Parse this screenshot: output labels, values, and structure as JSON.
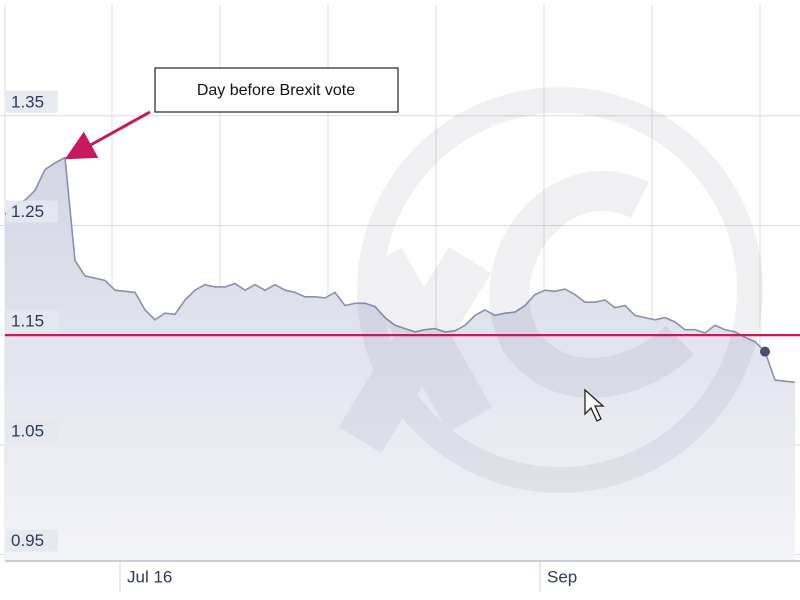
{
  "chart_data": {
    "type": "area-line",
    "annotation": "Day before Brexit vote",
    "categories": [
      null,
      null,
      null,
      null,
      null,
      null,
      null,
      null,
      null,
      null,
      null,
      null,
      "Jul 16",
      null,
      null,
      null,
      null,
      null,
      null,
      null,
      null,
      null,
      null,
      null,
      null,
      null,
      null,
      null,
      null,
      null,
      null,
      null,
      null,
      null,
      null,
      null,
      null,
      null,
      null,
      null,
      null,
      null,
      null,
      null,
      null,
      null,
      null,
      null,
      null,
      null,
      null,
      null,
      null,
      null,
      "Sep",
      null,
      null,
      null,
      null,
      null,
      null,
      null,
      null,
      null,
      null,
      null,
      null,
      null,
      null,
      null,
      null,
      null,
      null,
      null,
      null,
      null,
      null,
      null,
      null,
      null
    ],
    "values": [
      1.26,
      1.269,
      1.273,
      1.282,
      1.301,
      1.307,
      1.312,
      1.218,
      1.204,
      1.202,
      1.2,
      1.191,
      1.19,
      1.189,
      1.173,
      1.164,
      1.17,
      1.169,
      1.182,
      1.191,
      1.196,
      1.194,
      1.194,
      1.197,
      1.191,
      1.196,
      1.191,
      1.196,
      1.191,
      1.189,
      1.185,
      1.185,
      1.184,
      1.189,
      1.177,
      1.179,
      1.179,
      1.176,
      1.166,
      1.159,
      1.156,
      1.153,
      1.155,
      1.156,
      1.153,
      1.154,
      1.159,
      1.168,
      1.173,
      1.168,
      1.17,
      1.171,
      1.177,
      1.187,
      1.191,
      1.19,
      1.192,
      1.187,
      1.18,
      1.18,
      1.182,
      1.175,
      1.177,
      1.168,
      1.166,
      1.164,
      1.166,
      1.162,
      1.155,
      1.155,
      1.152,
      1.159,
      1.155,
      1.153,
      1.148,
      1.144,
      1.135,
      1.109,
      1.108,
      1.107
    ],
    "color": "#8a90ae",
    "fill_color": "#d9dbe8",
    "ylim": [
      0.945,
      1.451
    ],
    "yticks": [
      0.95,
      1.05,
      1.15,
      1.25,
      1.35
    ],
    "grid": true,
    "reference_line": {
      "value": 1.15,
      "color": "#d4145a"
    },
    "highlighted_point": 76
  }
}
